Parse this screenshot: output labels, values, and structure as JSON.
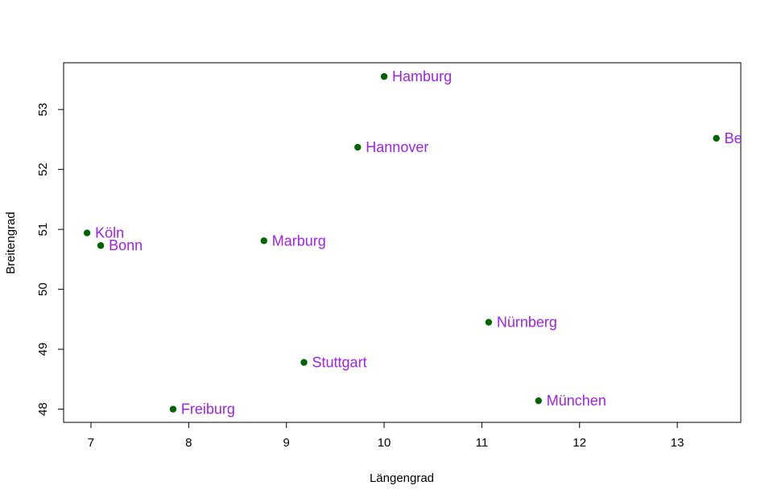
{
  "chart_data": {
    "type": "scatter",
    "title": "",
    "xlabel": "Längengrad",
    "ylabel": "Breitengrad",
    "xlim": [
      6.72,
      13.65
    ],
    "ylim": [
      47.78,
      53.78
    ],
    "x_ticks": [
      7,
      8,
      9,
      10,
      11,
      12,
      13
    ],
    "y_ticks": [
      48,
      49,
      50,
      51,
      52,
      53
    ],
    "grid": false,
    "point_color": "#006400",
    "label_color": "#a020f0",
    "points": [
      {
        "label": "Hamburg",
        "x": 10.0,
        "y": 53.55
      },
      {
        "label": "Be",
        "x": 13.4,
        "y": 52.52
      },
      {
        "label": "Hannover",
        "x": 9.73,
        "y": 52.37
      },
      {
        "label": "Köln",
        "x": 6.96,
        "y": 50.94
      },
      {
        "label": "Bonn",
        "x": 7.1,
        "y": 50.73
      },
      {
        "label": "Marburg",
        "x": 8.77,
        "y": 50.81
      },
      {
        "label": "Nürnberg",
        "x": 11.07,
        "y": 49.45
      },
      {
        "label": "Stuttgart",
        "x": 9.18,
        "y": 48.78
      },
      {
        "label": "München",
        "x": 11.58,
        "y": 48.14
      },
      {
        "label": "Freiburg",
        "x": 7.84,
        "y": 48.0
      }
    ]
  }
}
